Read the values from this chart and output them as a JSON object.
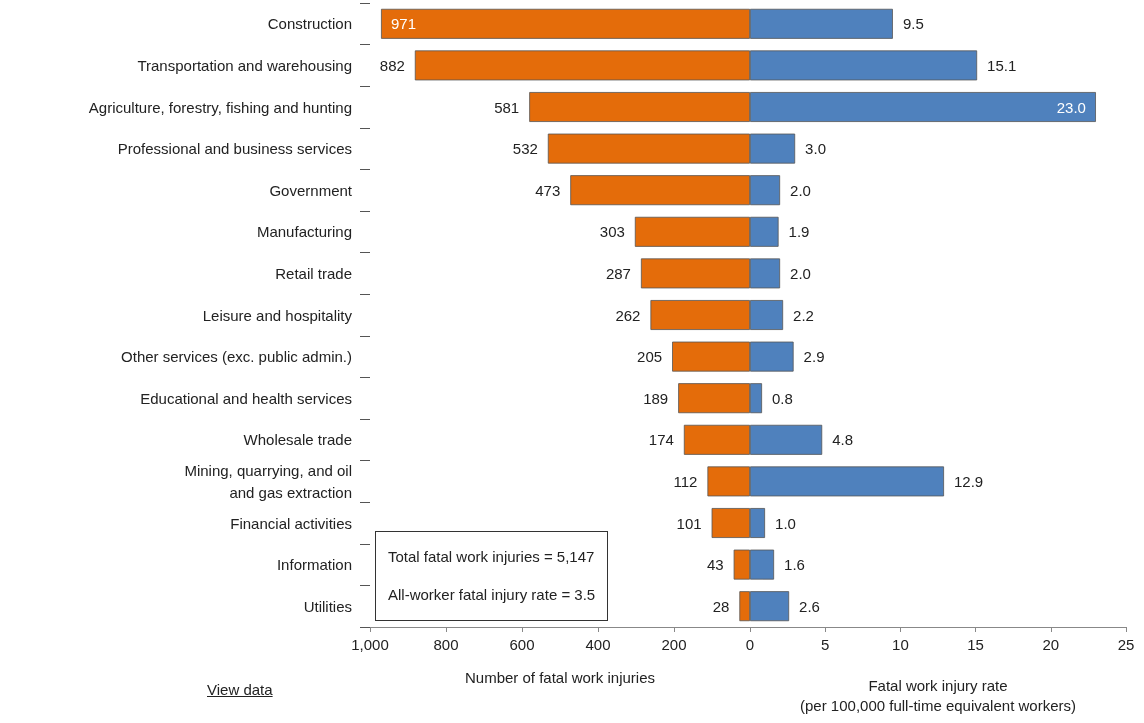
{
  "chart_data": [
    {
      "type": "bar",
      "orientation": "horizontal",
      "xlabel": "Number of fatal work injuries",
      "categories": [
        "Construction",
        "Transportation and warehousing",
        "Agriculture, forestry, fishing and hunting",
        "Professional and business services",
        "Government",
        "Manufacturing",
        "Retail trade",
        "Leisure and hospitality",
        "Other services (exc. public admin.)",
        "Educational and health services",
        "Wholesale trade",
        "Mining, quarrying, and oil\nand gas extraction",
        "Financial activities",
        "Information",
        "Utilities"
      ],
      "series": [
        {
          "color": "#e46c0a",
          "values": [
            971,
            882,
            581,
            532,
            473,
            303,
            287,
            262,
            205,
            189,
            174,
            112,
            101,
            43,
            28
          ]
        }
      ],
      "xlim": [
        1000,
        0
      ],
      "xticks": [
        {
          "value": 1000,
          "label": "1,000"
        },
        800,
        600,
        400,
        200,
        {
          "value": 0,
          "label": null
        }
      ],
      "data_labels": true,
      "grid": false,
      "annotations": [
        "Total fatal work injuries = 5,147",
        "All-worker fatal injury rate = 3.5",
        "View data"
      ]
    },
    {
      "type": "bar",
      "orientation": "horizontal",
      "xlabel": "Fatal work injury rate\n(per 100,000 full-time equivalent workers)",
      "categories": [
        null,
        null,
        null,
        null,
        null,
        null,
        null,
        null,
        null,
        null,
        null,
        null,
        null,
        null,
        null
      ],
      "series": [
        {
          "color": "#4f81bd",
          "values": [
            9.5,
            15.1,
            23.0,
            3.0,
            2.0,
            1.9,
            2.0,
            2.2,
            2.9,
            0.8,
            4.8,
            12.9,
            1.0,
            1.6,
            2.6
          ],
          "value_labels": [
            "9.5",
            "15.1",
            "23.0",
            "3.0",
            "2.0",
            "1.9",
            "2.0",
            "2.2",
            "2.9",
            "0.8",
            "4.8",
            "12.9",
            "1.0",
            "1.6",
            "2.6"
          ]
        }
      ],
      "xlim": [
        0,
        25
      ],
      "xticks": [
        0,
        5,
        10,
        15,
        20,
        25
      ],
      "tick_labels": "x",
      "grid": false
    }
  ]
}
